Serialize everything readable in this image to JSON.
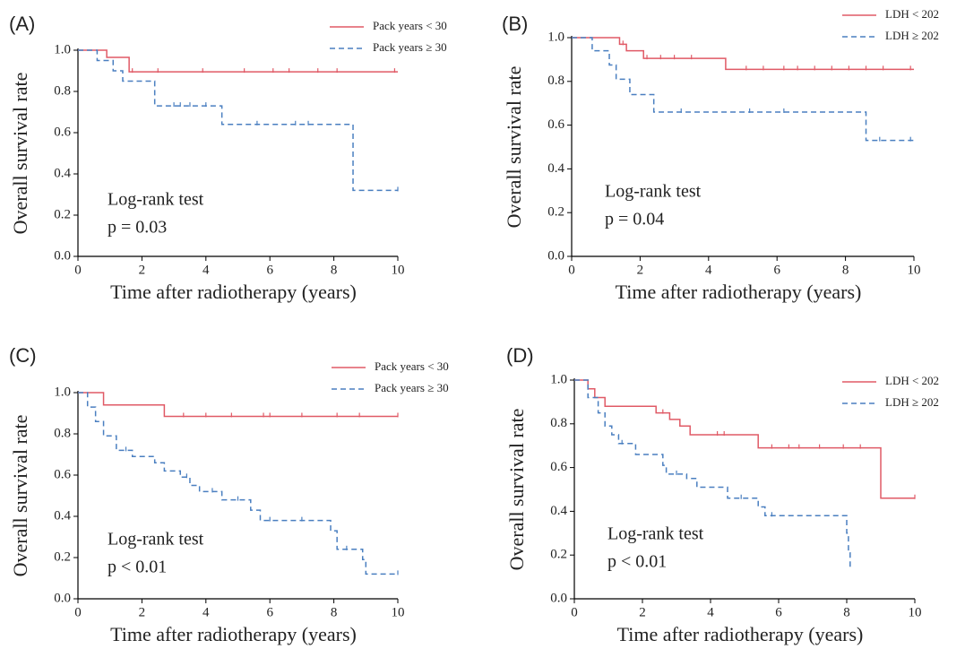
{
  "chart_data": [
    {
      "type": "step",
      "panel_label": "(A)",
      "ylabel": "Overall survival rate",
      "xlabel": "Time after radiotherapy (years)",
      "annotation": [
        "Log-rank test",
        "p = 0.03"
      ],
      "xlim": [
        0,
        10
      ],
      "xticks": [
        0,
        2,
        4,
        6,
        8,
        10
      ],
      "ylim": [
        0,
        1
      ],
      "yticks": [
        {
          "value": 0,
          "label": "0.0"
        },
        0.2,
        0.4,
        0.6,
        0.8,
        {
          "value": 1,
          "label": "1.0"
        }
      ],
      "series": [
        {
          "name": "Pack years < 30",
          "color": "#e05a66",
          "line_style": "solid",
          "x": [
            0,
            0.9,
            1.6,
            10
          ],
          "values": [
            1,
            0.965,
            0.895,
            0.895
          ],
          "censored": [
            1.7,
            2.5,
            3.9,
            5.2,
            6.1,
            6.6,
            7.5,
            8.1,
            9.9
          ]
        },
        {
          "name": "Pack years ≥ 30",
          "color": "#4a7fc0",
          "line_style": "dashed",
          "x": [
            0,
            0.6,
            1.1,
            1.4,
            2.4,
            4.5,
            8.6,
            10
          ],
          "values": [
            1,
            0.95,
            0.9,
            0.85,
            0.73,
            0.64,
            0.32,
            0.32
          ],
          "censored": [
            3.0,
            3.2,
            3.5,
            4.0,
            5.6,
            6.8,
            7.2,
            10
          ]
        }
      ]
    },
    {
      "type": "step",
      "panel_label": "(B)",
      "ylabel": "Overall survival rate",
      "xlabel": "Time after radiotherapy (years)",
      "annotation": [
        "Log-rank test",
        "p = 0.04"
      ],
      "xlim": [
        0,
        10
      ],
      "xticks": [
        0,
        2,
        4,
        6,
        8,
        10
      ],
      "ylim": [
        0,
        1
      ],
      "yticks": [
        {
          "value": 0,
          "label": "0.0"
        },
        0.2,
        0.4,
        0.6,
        0.8,
        {
          "value": 1,
          "label": "1.0"
        }
      ],
      "series": [
        {
          "name": "LDH < 202",
          "color": "#e05a66",
          "line_style": "solid",
          "x": [
            0,
            1.4,
            1.6,
            2.1,
            4.5,
            10
          ],
          "values": [
            1,
            0.97,
            0.94,
            0.905,
            0.855,
            0.855
          ],
          "censored": [
            1.5,
            2.2,
            2.6,
            3.0,
            3.5,
            5.1,
            5.6,
            6.2,
            6.6,
            7.1,
            7.6,
            8.1,
            8.6,
            9.1,
            9.9
          ]
        },
        {
          "name": "LDH ≥ 202",
          "color": "#4a7fc0",
          "line_style": "dashed",
          "x": [
            0,
            0.6,
            1.1,
            1.3,
            1.7,
            2.4,
            8.6,
            10
          ],
          "values": [
            1,
            0.94,
            0.875,
            0.81,
            0.74,
            0.66,
            0.53,
            0.53
          ],
          "censored": [
            3.2,
            5.2,
            6.2,
            9.0,
            9.9
          ]
        }
      ]
    },
    {
      "type": "step",
      "panel_label": "(C)",
      "ylabel": "Overall survival rate",
      "xlabel": "Time after radiotherapy (years)",
      "annotation": [
        "Log-rank test",
        "p < 0.01"
      ],
      "xlim": [
        0,
        10
      ],
      "xticks": [
        0,
        2,
        4,
        6,
        8,
        10
      ],
      "ylim": [
        0,
        1
      ],
      "yticks": [
        {
          "value": 0,
          "label": "0.0"
        },
        0.2,
        0.4,
        0.6,
        0.8,
        {
          "value": 1,
          "label": "1.0"
        }
      ],
      "series": [
        {
          "name": "Pack years < 30",
          "color": "#e05a66",
          "line_style": "solid",
          "x": [
            0,
            0.8,
            2.7,
            10
          ],
          "values": [
            1,
            0.94,
            0.885,
            0.885
          ],
          "censored": [
            3.3,
            4.0,
            4.8,
            5.8,
            6.0,
            7.0,
            8.1,
            8.8,
            10
          ]
        },
        {
          "name": "Pack years ≥ 30",
          "color": "#4a7fc0",
          "line_style": "dashed",
          "x": [
            0,
            0.3,
            0.55,
            0.8,
            1.2,
            1.7,
            2.4,
            2.7,
            3.2,
            3.5,
            3.8,
            4.5,
            5.4,
            5.7,
            7.9,
            8.1,
            8.9,
            9.0,
            10
          ],
          "values": [
            1,
            0.93,
            0.86,
            0.79,
            0.72,
            0.69,
            0.66,
            0.62,
            0.59,
            0.55,
            0.52,
            0.48,
            0.43,
            0.38,
            0.33,
            0.24,
            0.19,
            0.12,
            0.12
          ],
          "censored": [
            1.5,
            3.4,
            4.2,
            5.0,
            6.0,
            7.0,
            8.4,
            10
          ]
        }
      ]
    },
    {
      "type": "step",
      "panel_label": "(D)",
      "ylabel": "Overall survival rate",
      "xlabel": "Time after radiotherapy (years)",
      "annotation": [
        "Log-rank test",
        "p < 0.01"
      ],
      "xlim": [
        0,
        10
      ],
      "xticks": [
        0,
        2,
        4,
        6,
        8,
        10
      ],
      "ylim": [
        0,
        1
      ],
      "yticks": [
        {
          "value": 0,
          "label": "0.0"
        },
        0.2,
        0.4,
        0.6,
        0.8,
        {
          "value": 1,
          "label": "1.0"
        }
      ],
      "series": [
        {
          "name": "LDH < 202",
          "color": "#e05a66",
          "line_style": "solid",
          "x": [
            0,
            0.4,
            0.6,
            0.9,
            2.4,
            2.8,
            3.1,
            3.4,
            5.4,
            9.0,
            10
          ],
          "values": [
            1,
            0.96,
            0.92,
            0.88,
            0.85,
            0.82,
            0.79,
            0.75,
            0.69,
            0.46,
            0.46
          ],
          "censored": [
            2.6,
            4.2,
            4.4,
            5.8,
            6.3,
            6.6,
            7.2,
            7.9,
            8.4,
            10
          ]
        },
        {
          "name": "LDH ≥ 202",
          "color": "#4a7fc0",
          "line_style": "dashed",
          "x": [
            0,
            0.4,
            0.7,
            0.9,
            1.1,
            1.3,
            1.8,
            2.6,
            2.7,
            3.3,
            3.6,
            4.5,
            5.4,
            5.6,
            8.0,
            8.05,
            8.1
          ],
          "values": [
            1,
            0.92,
            0.85,
            0.79,
            0.75,
            0.71,
            0.66,
            0.61,
            0.57,
            0.55,
            0.51,
            0.46,
            0.42,
            0.38,
            0.3,
            0.21,
            0.13
          ],
          "censored": [
            1.4,
            3.0,
            4.9,
            5.8
          ]
        }
      ]
    }
  ]
}
